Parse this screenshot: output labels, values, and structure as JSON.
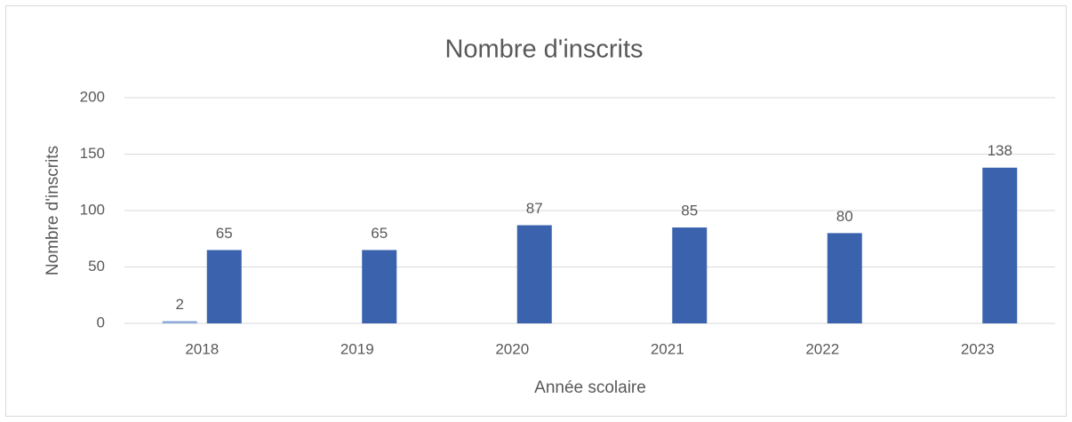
{
  "chart_data": {
    "type": "bar",
    "title": "Nombre d'inscrits",
    "x_label": "Année scolaire",
    "y_label": "Nombre d'inscrits",
    "categories": [
      "2018",
      "2019",
      "2020",
      "2021",
      "2022",
      "2023"
    ],
    "series": [
      {
        "color": "#8eaadb",
        "values": [
          2,
          null,
          null,
          null,
          null,
          null
        ]
      },
      {
        "color": "#3a62ad",
        "values": [
          65,
          65,
          87,
          85,
          80,
          138
        ]
      }
    ],
    "ylim": [
      0,
      200
    ],
    "yticks": [
      0,
      50,
      100,
      150,
      200
    ],
    "grid": true
  }
}
